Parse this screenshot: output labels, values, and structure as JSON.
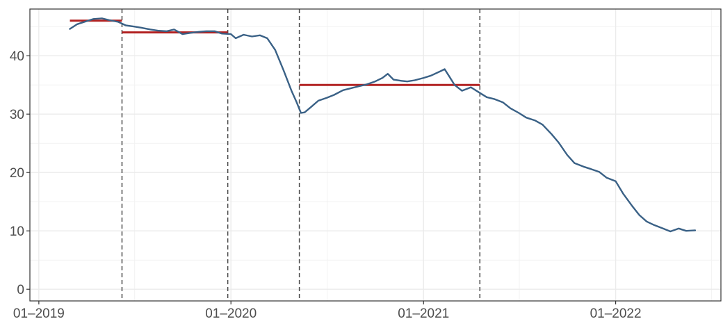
{
  "chart_data": {
    "type": "line",
    "title": "",
    "xlabel": "",
    "ylabel": "",
    "xlim": [
      "2018-12-15",
      "2022-07-20"
    ],
    "ylim": [
      -2,
      48
    ],
    "grid": true,
    "x_tick_labels": [
      {
        "date": "2019-01-01",
        "label": "01–2019"
      },
      {
        "date": "2020-01-01",
        "label": "01–2020"
      },
      {
        "date": "2021-01-01",
        "label": "01–2021"
      },
      {
        "date": "2022-01-01",
        "label": "01–2022"
      }
    ],
    "x_minor_grid_dates": [
      "2019-07-02",
      "2020-07-02",
      "2021-07-02",
      "2022-07-02"
    ],
    "y_ticks": [
      0,
      10,
      20,
      30,
      40
    ],
    "y_minor_grid": [
      5,
      15,
      25,
      35,
      45
    ],
    "series": [
      {
        "color": "#3a6186",
        "points": [
          [
            "2019-03-01",
            44.6
          ],
          [
            "2019-03-15",
            45.4
          ],
          [
            "2019-04-01",
            45.9
          ],
          [
            "2019-04-15",
            46.3
          ],
          [
            "2019-05-01",
            46.4
          ],
          [
            "2019-05-15",
            46.1
          ],
          [
            "2019-06-01",
            45.8
          ],
          [
            "2019-06-15",
            45.2
          ],
          [
            "2019-07-01",
            45.0
          ],
          [
            "2019-07-15",
            44.8
          ],
          [
            "2019-08-01",
            44.5
          ],
          [
            "2019-08-15",
            44.3
          ],
          [
            "2019-09-01",
            44.2
          ],
          [
            "2019-09-15",
            44.5
          ],
          [
            "2019-10-01",
            43.7
          ],
          [
            "2019-10-15",
            43.9
          ],
          [
            "2019-11-01",
            44.1
          ],
          [
            "2019-11-15",
            44.2
          ],
          [
            "2019-12-01",
            44.2
          ],
          [
            "2019-12-15",
            43.8
          ],
          [
            "2020-01-01",
            43.7
          ],
          [
            "2020-01-10",
            43.0
          ],
          [
            "2020-01-25",
            43.6
          ],
          [
            "2020-02-10",
            43.3
          ],
          [
            "2020-02-25",
            43.5
          ],
          [
            "2020-03-10",
            43.0
          ],
          [
            "2020-03-25",
            41.0
          ],
          [
            "2020-04-10",
            37.5
          ],
          [
            "2020-04-25",
            34.0
          ],
          [
            "2020-05-05",
            32.0
          ],
          [
            "2020-05-13",
            30.2
          ],
          [
            "2020-05-20",
            30.3
          ],
          [
            "2020-06-01",
            31.2
          ],
          [
            "2020-06-15",
            32.3
          ],
          [
            "2020-07-01",
            32.8
          ],
          [
            "2020-07-15",
            33.3
          ],
          [
            "2020-08-01",
            34.1
          ],
          [
            "2020-08-15",
            34.4
          ],
          [
            "2020-09-01",
            34.8
          ],
          [
            "2020-09-15",
            35.1
          ],
          [
            "2020-10-01",
            35.6
          ],
          [
            "2020-10-15",
            36.2
          ],
          [
            "2020-10-25",
            36.9
          ],
          [
            "2020-11-05",
            35.9
          ],
          [
            "2020-11-20",
            35.7
          ],
          [
            "2020-12-01",
            35.6
          ],
          [
            "2020-12-15",
            35.8
          ],
          [
            "2021-01-01",
            36.2
          ],
          [
            "2021-01-15",
            36.6
          ],
          [
            "2021-02-01",
            37.3
          ],
          [
            "2021-02-10",
            37.7
          ],
          [
            "2021-02-20",
            36.3
          ],
          [
            "2021-03-01",
            35.0
          ],
          [
            "2021-03-15",
            34.0
          ],
          [
            "2021-04-01",
            34.6
          ],
          [
            "2021-04-15",
            33.8
          ],
          [
            "2021-05-01",
            32.9
          ],
          [
            "2021-05-15",
            32.6
          ],
          [
            "2021-06-01",
            32.0
          ],
          [
            "2021-06-15",
            31.0
          ],
          [
            "2021-07-01",
            30.2
          ],
          [
            "2021-07-15",
            29.4
          ],
          [
            "2021-08-01",
            28.9
          ],
          [
            "2021-08-15",
            28.2
          ],
          [
            "2021-09-01",
            26.6
          ],
          [
            "2021-09-15",
            25.1
          ],
          [
            "2021-10-01",
            23.0
          ],
          [
            "2021-10-15",
            21.6
          ],
          [
            "2021-11-01",
            21.0
          ],
          [
            "2021-11-15",
            20.6
          ],
          [
            "2021-12-01",
            20.1
          ],
          [
            "2021-12-15",
            19.1
          ],
          [
            "2022-01-01",
            18.5
          ],
          [
            "2022-01-15",
            16.4
          ],
          [
            "2022-02-01",
            14.3
          ],
          [
            "2022-02-15",
            12.7
          ],
          [
            "2022-03-01",
            11.6
          ],
          [
            "2022-03-15",
            11.0
          ],
          [
            "2022-04-01",
            10.4
          ],
          [
            "2022-04-15",
            9.9
          ],
          [
            "2022-05-01",
            10.4
          ],
          [
            "2022-05-15",
            10.0
          ],
          [
            "2022-06-01",
            10.1
          ]
        ]
      }
    ],
    "vlines": [
      "2019-06-08",
      "2019-12-26",
      "2020-05-10",
      "2021-04-18"
    ],
    "segments": [
      {
        "start": "2019-03-01",
        "end": "2019-06-08",
        "value": 46.0,
        "color": "#b22222"
      },
      {
        "start": "2019-06-08",
        "end": "2019-12-26",
        "value": 44.0,
        "color": "#b22222"
      },
      {
        "start": "2020-05-10",
        "end": "2021-04-18",
        "value": 35.0,
        "color": "#b22222"
      }
    ]
  }
}
